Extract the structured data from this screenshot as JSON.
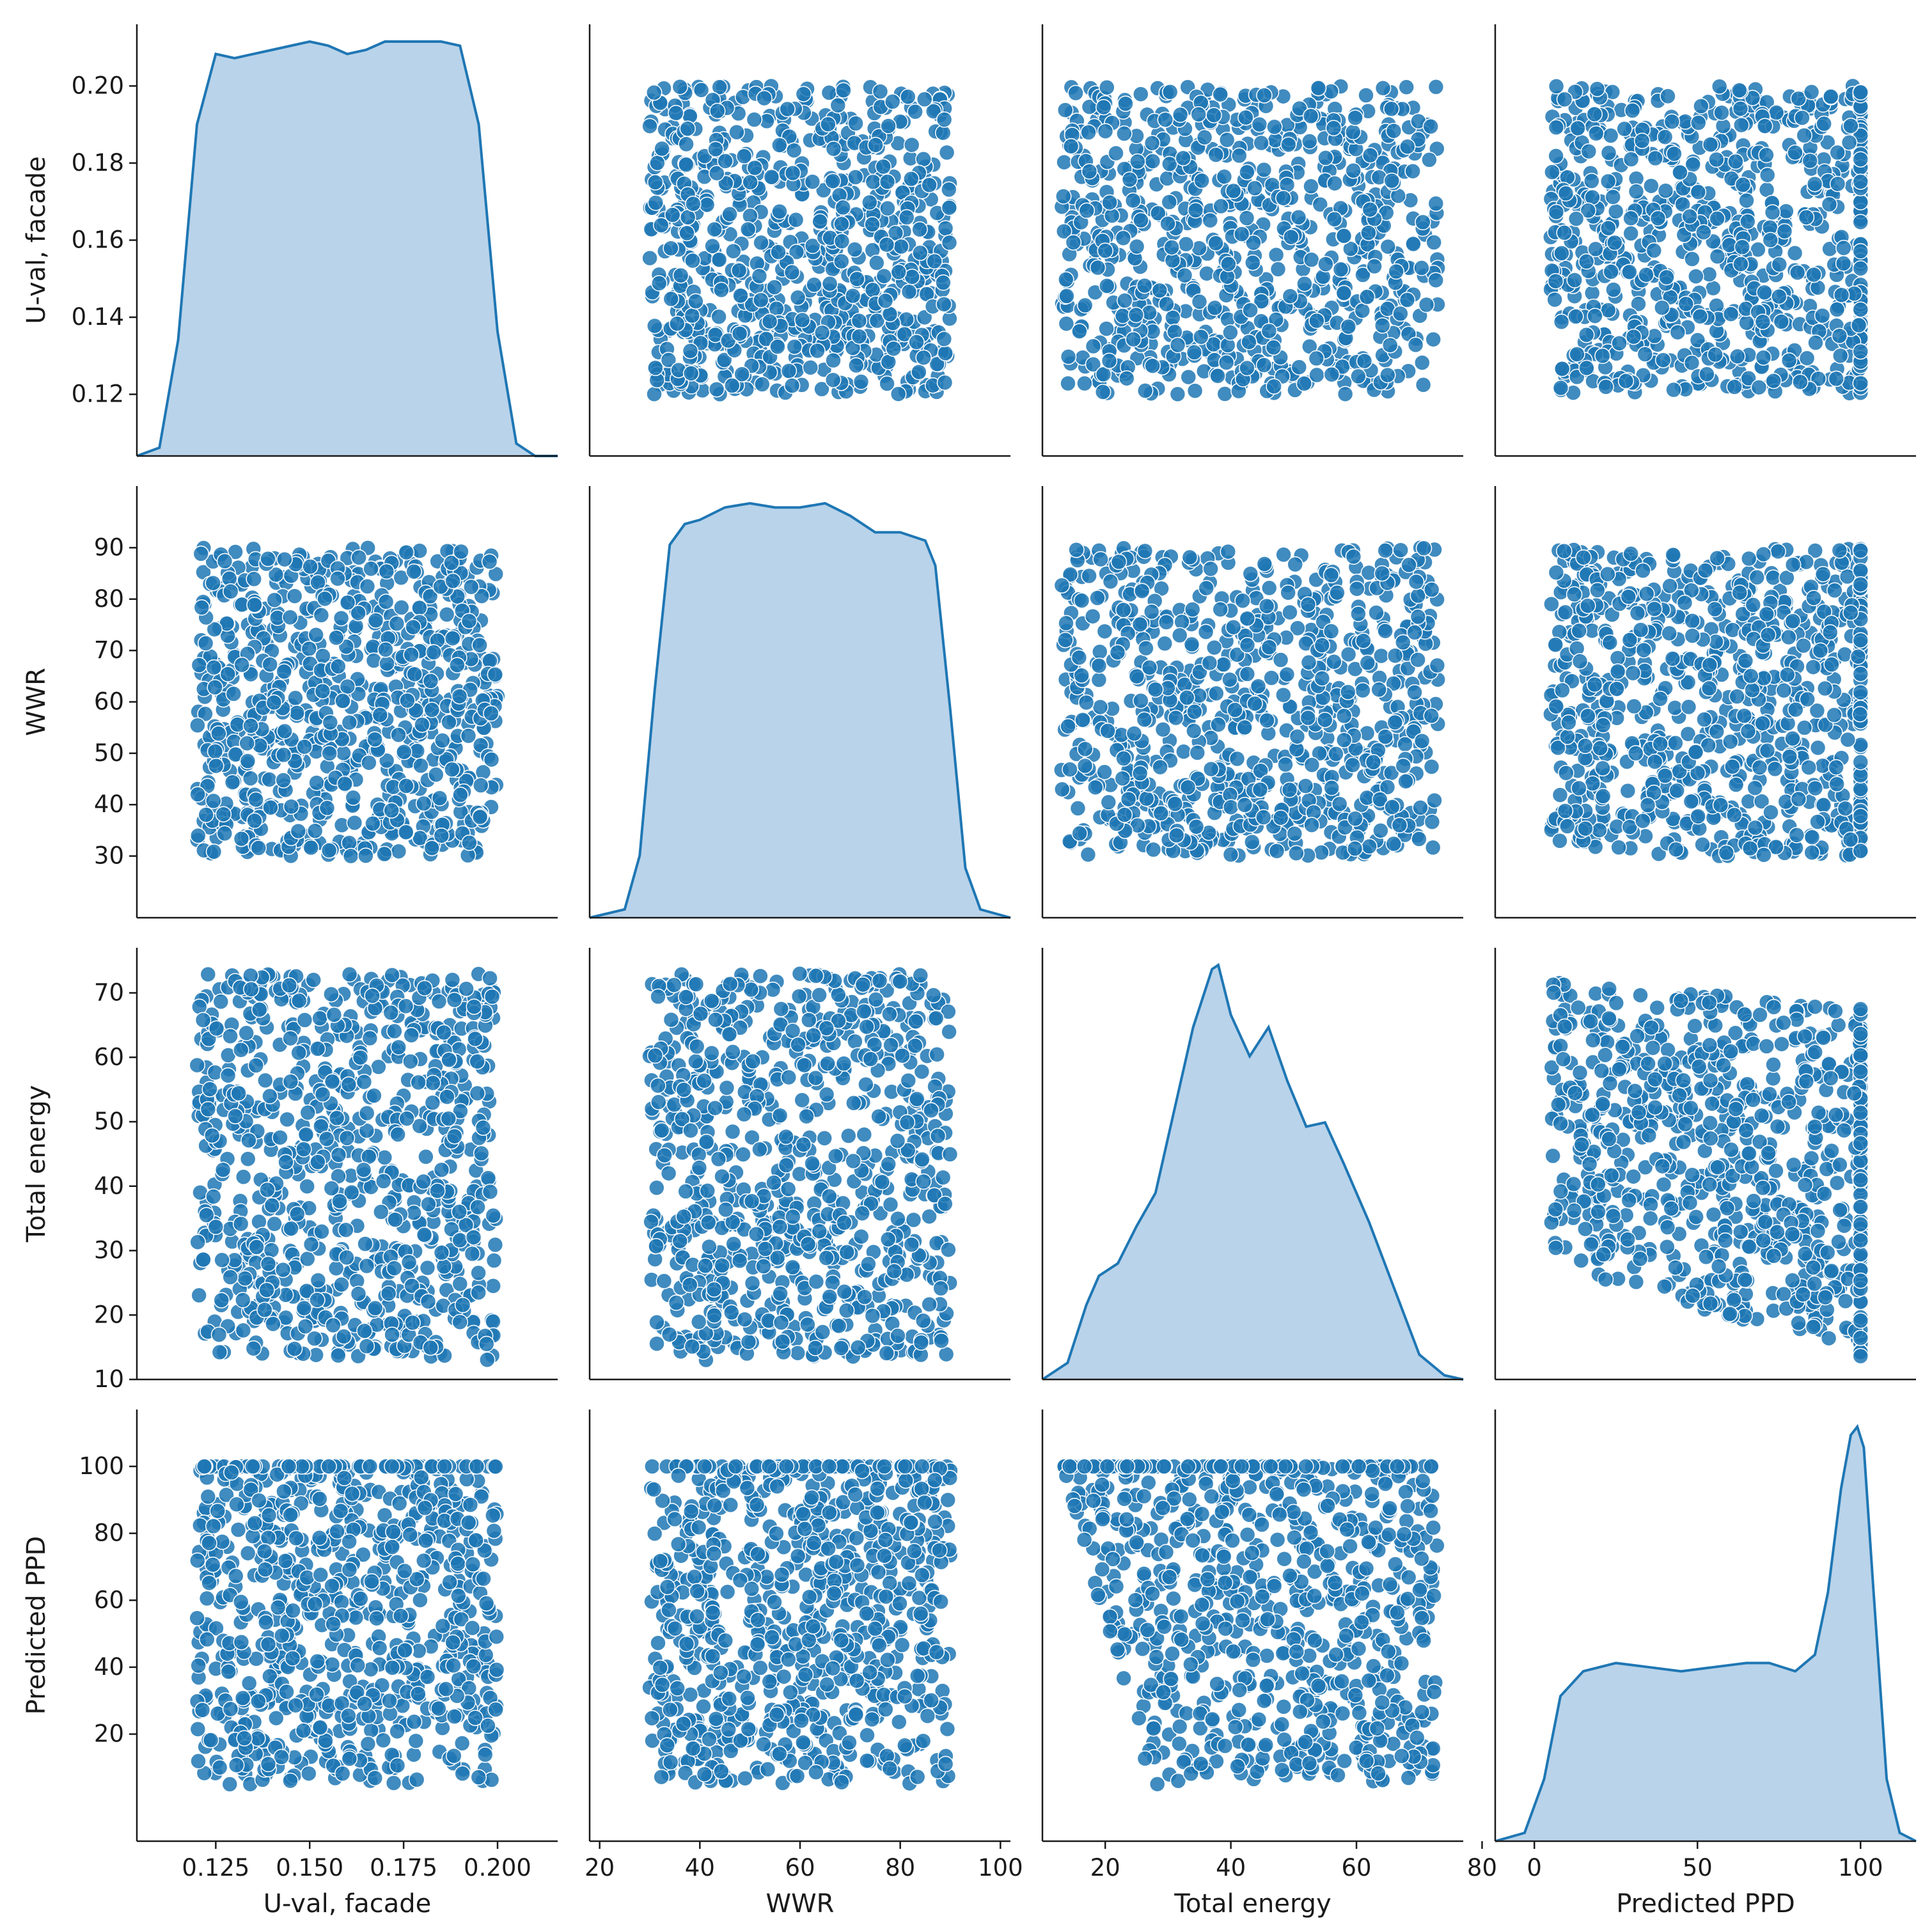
{
  "chart_data": {
    "type": "pairplot",
    "title": "",
    "colors": {
      "point": "#1f77b4",
      "point_edge": "#ffffff",
      "kde_fill": "#b9d3ea",
      "kde_line": "#1f77b4",
      "axis": "#1a1a1a"
    },
    "variables": [
      {
        "name": "U-val, facade",
        "range": [
          0.12,
          0.2
        ],
        "axis_lim": [
          0.104,
          0.216
        ],
        "ticks_y": [
          "0.12",
          "0.14",
          "0.16",
          "0.18",
          "0.20"
        ],
        "ticks_x": [
          "0.125",
          "0.150",
          "0.175",
          "0.200"
        ]
      },
      {
        "name": "WWR",
        "range": [
          30,
          90
        ],
        "axis_lim": [
          18,
          102
        ],
        "ticks_y": [
          "30",
          "40",
          "50",
          "60",
          "70",
          "80",
          "90"
        ],
        "ticks_x": [
          "20",
          "40",
          "60",
          "80",
          "100"
        ]
      },
      {
        "name": "Total energy",
        "range": [
          13,
          73
        ],
        "axis_lim": [
          10,
          77
        ],
        "ticks_y": [
          "10",
          "20",
          "30",
          "40",
          "50",
          "60",
          "70"
        ],
        "ticks_x": [
          "20",
          "40",
          "60",
          "80"
        ]
      },
      {
        "name": "Predicted PPD",
        "range": [
          5,
          100
        ],
        "axis_lim": [
          -12,
          117
        ],
        "ticks_y": [
          "20",
          "40",
          "60",
          "80",
          "100"
        ],
        "ticks_x": [
          "0",
          "50",
          "100"
        ]
      }
    ],
    "diagonal_kde": [
      {
        "variable": "U-val, facade",
        "x": [
          0.104,
          0.11,
          0.115,
          0.12,
          0.125,
          0.13,
          0.135,
          0.14,
          0.145,
          0.15,
          0.155,
          0.16,
          0.165,
          0.17,
          0.175,
          0.18,
          0.185,
          0.19,
          0.195,
          0.2,
          0.205,
          0.21,
          0.216
        ],
        "density": [
          0.0,
          0.02,
          0.28,
          0.8,
          0.97,
          0.96,
          0.97,
          0.98,
          0.99,
          1.0,
          0.99,
          0.97,
          0.98,
          1.0,
          1.0,
          1.0,
          1.0,
          0.99,
          0.8,
          0.3,
          0.03,
          0.0,
          0.0
        ]
      },
      {
        "variable": "WWR",
        "x": [
          18,
          25,
          28,
          31,
          34,
          37,
          40,
          45,
          50,
          55,
          60,
          65,
          70,
          75,
          80,
          85,
          87,
          90,
          93,
          96,
          102
        ],
        "density": [
          0.0,
          0.02,
          0.15,
          0.55,
          0.9,
          0.95,
          0.96,
          0.99,
          1.0,
          0.99,
          0.99,
          1.0,
          0.97,
          0.93,
          0.93,
          0.91,
          0.85,
          0.5,
          0.12,
          0.02,
          0.0
        ]
      },
      {
        "variable": "Total energy",
        "x": [
          10,
          14,
          17,
          19,
          22,
          25,
          28,
          31,
          34,
          37,
          38,
          40,
          43,
          46,
          49,
          52,
          55,
          58,
          62,
          66,
          70,
          74,
          77
        ],
        "density": [
          0.0,
          0.04,
          0.18,
          0.25,
          0.28,
          0.37,
          0.45,
          0.65,
          0.85,
          0.99,
          1.0,
          0.88,
          0.78,
          0.85,
          0.72,
          0.61,
          0.62,
          0.52,
          0.38,
          0.22,
          0.06,
          0.01,
          0.0
        ]
      },
      {
        "variable": "Predicted PPD",
        "x": [
          -12,
          -3,
          3,
          8,
          15,
          25,
          35,
          45,
          55,
          65,
          72,
          80,
          86,
          90,
          94,
          97,
          99,
          101,
          104,
          108,
          112,
          117
        ],
        "density": [
          0.0,
          0.02,
          0.15,
          0.35,
          0.41,
          0.43,
          0.42,
          0.41,
          0.42,
          0.43,
          0.43,
          0.41,
          0.45,
          0.6,
          0.85,
          0.98,
          1.0,
          0.95,
          0.6,
          0.15,
          0.02,
          0.0
        ]
      }
    ],
    "scatter_relationships": [
      {
        "x": "WWR",
        "y": "U-val, facade",
        "pattern": "uniform"
      },
      {
        "x": "Total energy",
        "y": "U-val, facade",
        "pattern": "uniform"
      },
      {
        "x": "Predicted PPD",
        "y": "U-val, facade",
        "pattern": "uniform"
      },
      {
        "x": "U-val, facade",
        "y": "WWR",
        "pattern": "uniform"
      },
      {
        "x": "Total energy",
        "y": "WWR",
        "pattern": "uniform"
      },
      {
        "x": "Predicted PPD",
        "y": "WWR",
        "pattern": "uniform"
      },
      {
        "x": "U-val, facade",
        "y": "Total energy",
        "pattern": "uniform"
      },
      {
        "x": "WWR",
        "y": "Total energy",
        "pattern": "uniform"
      },
      {
        "x": "Predicted PPD",
        "y": "Total energy",
        "pattern": "upper band declines from about 70 to 68; lower bound declines from about 29 at PPD 0 to about 13 at PPD 100"
      },
      {
        "x": "U-val, facade",
        "y": "Predicted PPD",
        "pattern": "uniform with cluster at 100"
      },
      {
        "x": "WWR",
        "y": "Predicted PPD",
        "pattern": "uniform with cluster at 100"
      },
      {
        "x": "Total energy",
        "y": "Predicted PPD",
        "pattern": "left bound moves right as PPD decreases: about 13 at PPD 100 to about 28 at PPD 5"
      }
    ]
  }
}
